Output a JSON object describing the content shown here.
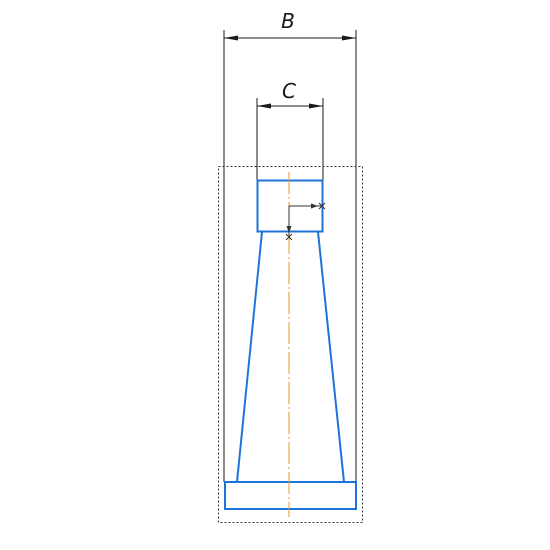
{
  "dimensions": {
    "overall_width_label": "B",
    "top_width_label": "C"
  },
  "colors": {
    "outline": "#1e73d9",
    "centerline": "#e69a28",
    "dimension": "#1a1a1a",
    "frame": "#333333",
    "background": "#ffffff"
  }
}
